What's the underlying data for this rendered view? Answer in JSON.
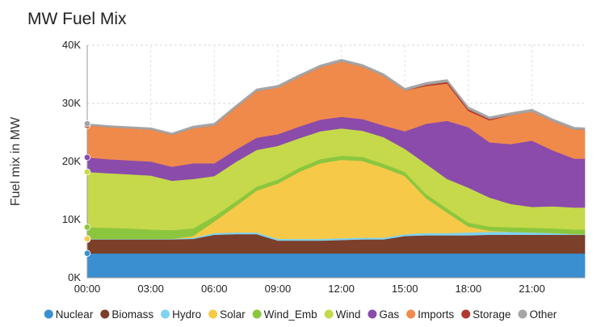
{
  "chart_data": {
    "type": "area",
    "stacked": true,
    "title": "MW Fuel Mix",
    "ylabel": "Fuel mix in MW",
    "xlabel": "",
    "ylim": [
      0,
      40000
    ],
    "xlim": [
      0,
      23.5
    ],
    "y_ticks": [
      0,
      10000,
      20000,
      30000,
      40000
    ],
    "y_tick_labels": [
      "0K",
      "10K",
      "20K",
      "30K",
      "40K"
    ],
    "x_ticks": [
      0,
      3,
      6,
      9,
      12,
      15,
      18,
      21
    ],
    "x_tick_labels": [
      "00:00",
      "03:00",
      "06:00",
      "09:00",
      "12:00",
      "15:00",
      "18:00",
      "21:00"
    ],
    "grid": true,
    "legend_position": "bottom",
    "x": [
      0,
      1,
      2,
      3,
      4,
      5,
      6,
      7,
      8,
      9,
      10,
      11,
      12,
      13,
      14,
      15,
      16,
      17,
      18,
      19,
      20,
      21,
      22,
      23,
      23.5
    ],
    "series": [
      {
        "name": "Nuclear",
        "color": "#3a8fd0",
        "values": [
          4200,
          4200,
          4200,
          4200,
          4200,
          4200,
          4200,
          4200,
          4200,
          4200,
          4200,
          4200,
          4200,
          4200,
          4200,
          4200,
          4200,
          4200,
          4200,
          4200,
          4200,
          4200,
          4200,
          4200,
          4200
        ]
      },
      {
        "name": "Biomass",
        "color": "#7b3f2a",
        "values": [
          2400,
          2400,
          2400,
          2400,
          2400,
          2500,
          3200,
          3300,
          3300,
          2200,
          2200,
          2200,
          2300,
          2400,
          2400,
          3000,
          3100,
          3100,
          3100,
          3200,
          3200,
          3200,
          3200,
          3200,
          3200
        ]
      },
      {
        "name": "Hydro",
        "color": "#7fd3f0",
        "values": [
          100,
          100,
          100,
          100,
          100,
          200,
          300,
          300,
          300,
          300,
          300,
          300,
          300,
          300,
          300,
          300,
          400,
          400,
          500,
          500,
          500,
          400,
          300,
          100,
          100
        ]
      },
      {
        "name": "Solar",
        "color": "#f7c948",
        "values": [
          0,
          0,
          0,
          0,
          0,
          300,
          2000,
          4500,
          7200,
          9500,
          11500,
          13000,
          13500,
          13200,
          12000,
          10000,
          6000,
          3500,
          1000,
          200,
          0,
          0,
          0,
          0,
          0
        ]
      },
      {
        "name": "Wind_Emb",
        "color": "#8cc63f",
        "values": [
          2000,
          1900,
          1800,
          1600,
          1500,
          1300,
          900,
          800,
          700,
          700,
          700,
          700,
          700,
          700,
          700,
          700,
          700,
          700,
          700,
          700,
          800,
          800,
          800,
          800,
          800
        ]
      },
      {
        "name": "Wind",
        "color": "#c5d94a",
        "values": [
          9500,
          9400,
          9300,
          9300,
          8500,
          8500,
          6900,
          6800,
          6300,
          5800,
          5100,
          4800,
          4700,
          4500,
          4600,
          4000,
          5200,
          5100,
          6000,
          5000,
          4000,
          3600,
          3800,
          3800,
          3800
        ]
      },
      {
        "name": "Gas",
        "color": "#8a4bab",
        "values": [
          2500,
          2400,
          2400,
          2400,
          2400,
          2700,
          2200,
          2100,
          2100,
          2000,
          2000,
          2000,
          2000,
          2000,
          2000,
          3000,
          6900,
          10000,
          10400,
          9500,
          10300,
          11400,
          9600,
          8400,
          8400
        ]
      },
      {
        "name": "Imports",
        "color": "#f08a4b",
        "values": [
          5500,
          5500,
          5500,
          5500,
          5500,
          6000,
          6500,
          7200,
          8000,
          8000,
          8500,
          9000,
          9500,
          9000,
          8500,
          7000,
          6500,
          6400,
          2800,
          3800,
          5000,
          5000,
          5000,
          5000,
          5000
        ]
      },
      {
        "name": "Storage",
        "color": "#b03a2e",
        "values": [
          0,
          0,
          0,
          0,
          0,
          0,
          0,
          0,
          0,
          0,
          0,
          0,
          0,
          0,
          0,
          0,
          200,
          300,
          300,
          200,
          0,
          0,
          0,
          0,
          0
        ]
      },
      {
        "name": "Other",
        "color": "#a5a5a5",
        "values": [
          300,
          300,
          300,
          300,
          300,
          400,
          400,
          400,
          400,
          400,
          400,
          400,
          400,
          400,
          400,
          400,
          400,
          400,
          400,
          400,
          400,
          400,
          400,
          400,
          300
        ]
      }
    ]
  }
}
